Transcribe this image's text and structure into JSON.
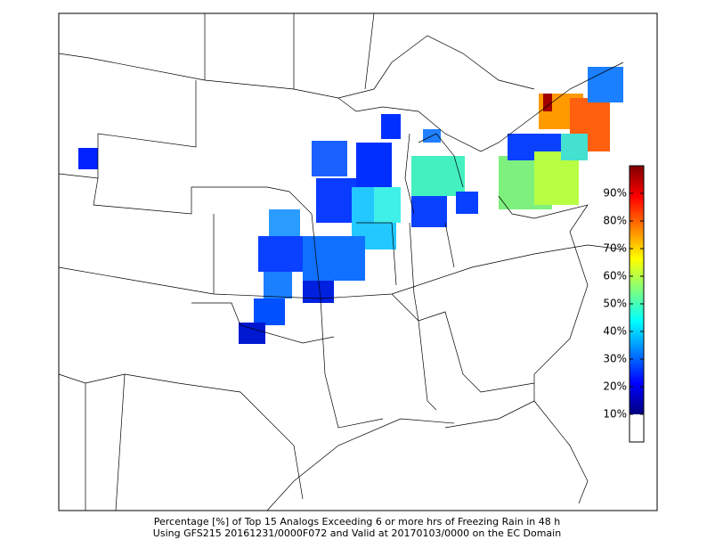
{
  "caption": [
    "Percentage [%] of Top 15 Analogs Exceeding 6 or more hrs of Freezing Rain in 48 h",
    "Using GFS215 20161231/0000F072 and Valid at 20170103/0000 on the EC Domain"
  ],
  "colorbar": {
    "lim": [
      0,
      100
    ],
    "threshold": 10,
    "ticks": [
      {
        "value": 10,
        "label": "10%"
      },
      {
        "value": 20,
        "label": "20%"
      },
      {
        "value": 30,
        "label": "30%"
      },
      {
        "value": 40,
        "label": "40%"
      },
      {
        "value": 50,
        "label": "50%"
      },
      {
        "value": 60,
        "label": "60%"
      },
      {
        "value": 70,
        "label": "70%"
      },
      {
        "value": 80,
        "label": "80%"
      },
      {
        "value": 90,
        "label": "90%"
      }
    ],
    "colors": [
      "#00007f",
      "#0000ff",
      "#007fff",
      "#00ffff",
      "#7fff7f",
      "#ffff00",
      "#ff7f00",
      "#ff0000",
      "#7f0000"
    ]
  }
}
